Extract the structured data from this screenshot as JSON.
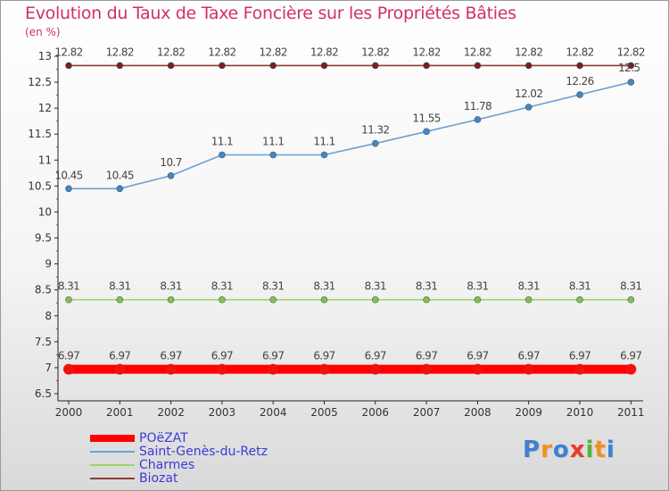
{
  "title": "Evolution du Taux de Taxe Foncière sur les Propriétés Bâties",
  "unit": "(en %)",
  "logo": {
    "text": "Proxiti",
    "letters": [
      "P",
      "r",
      "o",
      "x",
      "i",
      "t",
      "i"
    ],
    "colors": [
      "#3f7fd1",
      "#f0921e",
      "#3f7fd1",
      "#e93a2c",
      "#59b237",
      "#f0921e",
      "#3f7fd1"
    ]
  },
  "chart_data": {
    "type": "line",
    "title": "Evolution du Taux de Taxe Foncière sur les Propriétés Bâties",
    "ylabel": "(en %)",
    "xlabel": "",
    "x": [
      "2000",
      "2001",
      "2002",
      "2003",
      "2004",
      "2005",
      "2006",
      "2007",
      "2008",
      "2009",
      "2010",
      "2011"
    ],
    "ylim": [
      6.5,
      13
    ],
    "yticks": [
      "6.5",
      "7",
      "7.5",
      "8",
      "8.5",
      "9",
      "9.5",
      "10",
      "10.5",
      "11",
      "11.5",
      "12",
      "12.5",
      "13"
    ],
    "grid": false,
    "legend_position": "bottom-left",
    "series": [
      {
        "name": "POëZAT",
        "color": "#ff0000",
        "thick": true,
        "values": [
          6.97,
          6.97,
          6.97,
          6.97,
          6.97,
          6.97,
          6.97,
          6.97,
          6.97,
          6.97,
          6.97,
          6.97
        ],
        "labels": [
          "6.97",
          "6.97",
          "6.97",
          "6.97",
          "6.97",
          "6.97",
          "6.97",
          "6.97",
          "6.97",
          "6.97",
          "6.97",
          "6.97"
        ]
      },
      {
        "name": "Saint-Genès-du-Retz",
        "color": "#6aa1d4",
        "marker": "#3f88c9",
        "thick": false,
        "values": [
          10.45,
          10.45,
          10.7,
          11.1,
          11.1,
          11.1,
          11.32,
          11.55,
          11.78,
          12.02,
          12.26,
          12.5
        ],
        "labels": [
          "10.45",
          "10.45",
          "10.7",
          "11.1",
          "11.1",
          "11.1",
          "11.32",
          "11.55",
          "11.78",
          "12.02",
          "12.26",
          "12.5"
        ]
      },
      {
        "name": "Charmes",
        "color": "#9ad36a",
        "marker": "#7fc34f",
        "thick": false,
        "values": [
          8.31,
          8.31,
          8.31,
          8.31,
          8.31,
          8.31,
          8.31,
          8.31,
          8.31,
          8.31,
          8.31,
          8.31
        ],
        "labels": [
          "8.31",
          "8.31",
          "8.31",
          "8.31",
          "8.31",
          "8.31",
          "8.31",
          "8.31",
          "8.31",
          "8.31",
          "8.31",
          "8.31"
        ]
      },
      {
        "name": "Biozat",
        "color": "#8c3b3b",
        "marker": "#7a1f1f",
        "thick": false,
        "values": [
          12.82,
          12.82,
          12.82,
          12.82,
          12.82,
          12.82,
          12.82,
          12.82,
          12.82,
          12.82,
          12.82,
          12.82
        ],
        "labels": [
          "12.82",
          "12.82",
          "12.82",
          "12.82",
          "12.82",
          "12.82",
          "12.82",
          "12.82",
          "12.82",
          "12.82",
          "12.82",
          "12.82"
        ]
      }
    ]
  }
}
